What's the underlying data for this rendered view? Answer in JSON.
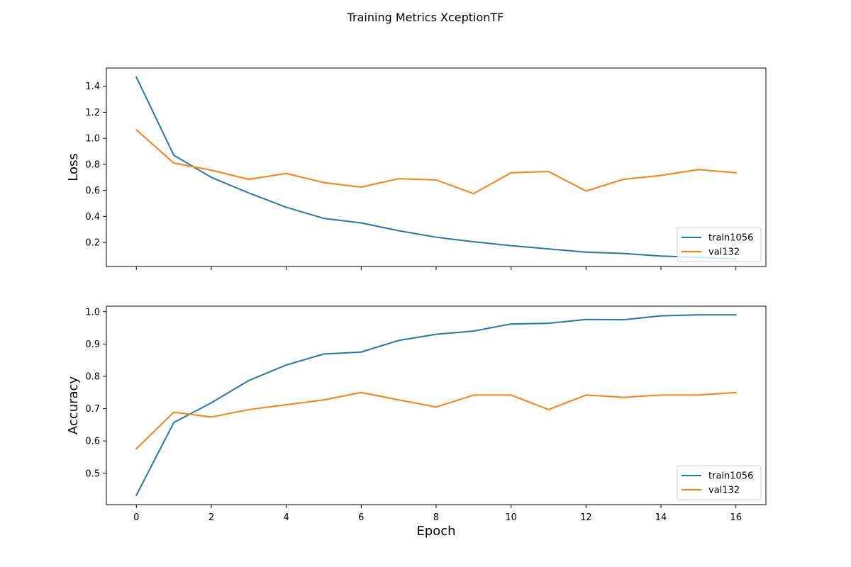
{
  "figure": {
    "title": "Training Metrics XceptionTF"
  },
  "chart_data": [
    {
      "type": "line",
      "title": "",
      "xlabel": "",
      "ylabel": "Loss",
      "x": [
        0,
        1,
        2,
        3,
        4,
        5,
        6,
        7,
        8,
        9,
        10,
        11,
        12,
        13,
        14,
        15,
        16
      ],
      "xlim": [
        -0.8,
        16.8
      ],
      "ylim": [
        0.015,
        1.54
      ],
      "xticks": [
        0,
        2,
        4,
        6,
        8,
        10,
        12,
        14,
        16
      ],
      "yticks": [
        0.2,
        0.4,
        0.6,
        0.8,
        1.0,
        1.2,
        1.4
      ],
      "ytick_labels": [
        "0.2",
        "0.4",
        "0.6",
        "0.8",
        "1.0",
        "1.2",
        "1.4"
      ],
      "show_xtick_labels": false,
      "grid": false,
      "legend_position": "lower-right",
      "series": [
        {
          "name": "train1056",
          "color": "#1f77b4",
          "values": [
            1.47,
            0.87,
            0.7,
            0.58,
            0.47,
            0.385,
            0.35,
            0.29,
            0.24,
            0.205,
            0.175,
            0.15,
            0.125,
            0.115,
            0.095,
            0.085,
            0.072
          ]
        },
        {
          "name": "val132",
          "color": "#ff7f0e",
          "values": [
            1.065,
            0.81,
            0.755,
            0.685,
            0.73,
            0.66,
            0.625,
            0.69,
            0.68,
            0.575,
            0.735,
            0.745,
            0.595,
            0.685,
            0.715,
            0.76,
            0.735
          ]
        }
      ]
    },
    {
      "type": "line",
      "title": "",
      "xlabel": "Epoch",
      "ylabel": "Accuracy",
      "x": [
        0,
        1,
        2,
        3,
        4,
        5,
        6,
        7,
        8,
        9,
        10,
        11,
        12,
        13,
        14,
        15,
        16
      ],
      "xlim": [
        -0.8,
        16.8
      ],
      "ylim": [
        0.403,
        1.017
      ],
      "xticks": [
        0,
        2,
        4,
        6,
        8,
        10,
        12,
        14,
        16
      ],
      "yticks": [
        0.5,
        0.6,
        0.7,
        0.8,
        0.9,
        1.0
      ],
      "ytick_labels": [
        "0.5",
        "0.6",
        "0.7",
        "0.8",
        "0.9",
        "1.0"
      ],
      "show_xtick_labels": true,
      "grid": false,
      "legend_position": "lower-right",
      "series": [
        {
          "name": "train1056",
          "color": "#1f77b4",
          "values": [
            0.432,
            0.657,
            0.718,
            0.787,
            0.835,
            0.869,
            0.875,
            0.911,
            0.93,
            0.94,
            0.962,
            0.964,
            0.976,
            0.975,
            0.987,
            0.99,
            0.99
          ]
        },
        {
          "name": "val132",
          "color": "#ff7f0e",
          "values": [
            0.576,
            0.689,
            0.674,
            0.697,
            0.712,
            0.727,
            0.75,
            0.727,
            0.705,
            0.742,
            0.742,
            0.697,
            0.742,
            0.735,
            0.742,
            0.742,
            0.75
          ]
        }
      ]
    }
  ]
}
